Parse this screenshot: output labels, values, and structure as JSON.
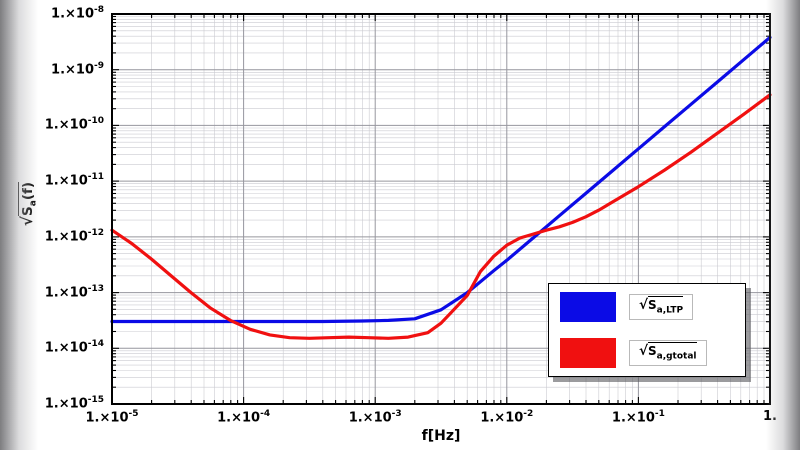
{
  "window": {
    "background": "#ffffff",
    "edge_shade_color": "#767679"
  },
  "chart_data": {
    "type": "line",
    "title": "",
    "xlabel": "f[Hz]",
    "ylabel_parts": {
      "radical": "√",
      "main": "S",
      "sub": "a",
      "suffix": "(f)"
    },
    "x_axis": {
      "scale": "log",
      "log_range": [
        -5,
        0
      ],
      "ticks": [
        {
          "base": "1.×10",
          "exp": "-5"
        },
        {
          "base": "1.×10",
          "exp": "-4"
        },
        {
          "base": "1.×10",
          "exp": "-3"
        },
        {
          "base": "1.×10",
          "exp": "-2"
        },
        {
          "base": "1.×10",
          "exp": "-1"
        },
        {
          "base": "1.",
          "exp": ""
        }
      ]
    },
    "y_axis": {
      "scale": "log",
      "log_range": [
        -15,
        -8
      ],
      "ticks": [
        {
          "base": "1.×10",
          "exp": "-15"
        },
        {
          "base": "1.×10",
          "exp": "-14"
        },
        {
          "base": "1.×10",
          "exp": "-13"
        },
        {
          "base": "1.×10",
          "exp": "-12"
        },
        {
          "base": "1.×10",
          "exp": "-11"
        },
        {
          "base": "1.×10",
          "exp": "-10"
        },
        {
          "base": "1.×10",
          "exp": "-9"
        },
        {
          "base": "1.×10",
          "exp": "-8"
        }
      ]
    },
    "grid": {
      "on": true,
      "major_color": "#96969e",
      "minor_color": "#cbcbd1"
    },
    "frame_color": "#000000",
    "legend": {
      "position": "inside-bottom-right",
      "items": [
        {
          "radical": "√",
          "main": "S",
          "sub": "a,LTP",
          "color": "#0b0bе6"
        },
        {
          "radical": "√",
          "main": "S",
          "sub": "a,gtotal",
          "color": "#f01010"
        }
      ]
    },
    "series": [
      {
        "name": "sqrt_S_a_LTP",
        "color": "#0b0be6",
        "points_log10": [
          [
            -5.0,
            -13.52
          ],
          [
            -4.6,
            -13.52
          ],
          [
            -4.2,
            -13.52
          ],
          [
            -3.8,
            -13.52
          ],
          [
            -3.4,
            -13.52
          ],
          [
            -3.1,
            -13.51
          ],
          [
            -2.9,
            -13.5
          ],
          [
            -2.7,
            -13.47
          ],
          [
            -2.5,
            -13.31
          ],
          [
            -2.3,
            -13.0
          ],
          [
            -2.1,
            -12.61
          ],
          [
            -2.0,
            -12.42
          ],
          [
            -1.8,
            -12.02
          ],
          [
            -1.6,
            -11.62
          ],
          [
            -1.4,
            -11.22
          ],
          [
            -1.2,
            -10.82
          ],
          [
            -1.0,
            -10.42
          ],
          [
            -0.8,
            -10.02
          ],
          [
            -0.6,
            -9.62
          ],
          [
            -0.4,
            -9.22
          ],
          [
            -0.2,
            -8.82
          ],
          [
            0.0,
            -8.42
          ]
        ]
      },
      {
        "name": "sqrt_S_a_gtotal",
        "color": "#f01010",
        "points_log10": [
          [
            -5.0,
            -11.88
          ],
          [
            -4.85,
            -12.12
          ],
          [
            -4.7,
            -12.4
          ],
          [
            -4.55,
            -12.7
          ],
          [
            -4.4,
            -13.0
          ],
          [
            -4.25,
            -13.28
          ],
          [
            -4.1,
            -13.5
          ],
          [
            -3.95,
            -13.66
          ],
          [
            -3.8,
            -13.76
          ],
          [
            -3.65,
            -13.81
          ],
          [
            -3.5,
            -13.82
          ],
          [
            -3.35,
            -13.81
          ],
          [
            -3.2,
            -13.8
          ],
          [
            -3.05,
            -13.81
          ],
          [
            -2.9,
            -13.82
          ],
          [
            -2.75,
            -13.8
          ],
          [
            -2.6,
            -13.72
          ],
          [
            -2.5,
            -13.55
          ],
          [
            -2.4,
            -13.3
          ],
          [
            -2.3,
            -13.05
          ],
          [
            -2.2,
            -12.62
          ],
          [
            -2.1,
            -12.35
          ],
          [
            -2.0,
            -12.15
          ],
          [
            -1.9,
            -12.02
          ],
          [
            -1.8,
            -11.95
          ],
          [
            -1.7,
            -11.88
          ],
          [
            -1.6,
            -11.82
          ],
          [
            -1.5,
            -11.74
          ],
          [
            -1.4,
            -11.64
          ],
          [
            -1.3,
            -11.52
          ],
          [
            -1.2,
            -11.38
          ],
          [
            -1.1,
            -11.24
          ],
          [
            -1.0,
            -11.1
          ],
          [
            -0.8,
            -10.8
          ],
          [
            -0.6,
            -10.48
          ],
          [
            -0.4,
            -10.14
          ],
          [
            -0.2,
            -9.8
          ],
          [
            0.0,
            -9.45
          ]
        ]
      }
    ]
  }
}
